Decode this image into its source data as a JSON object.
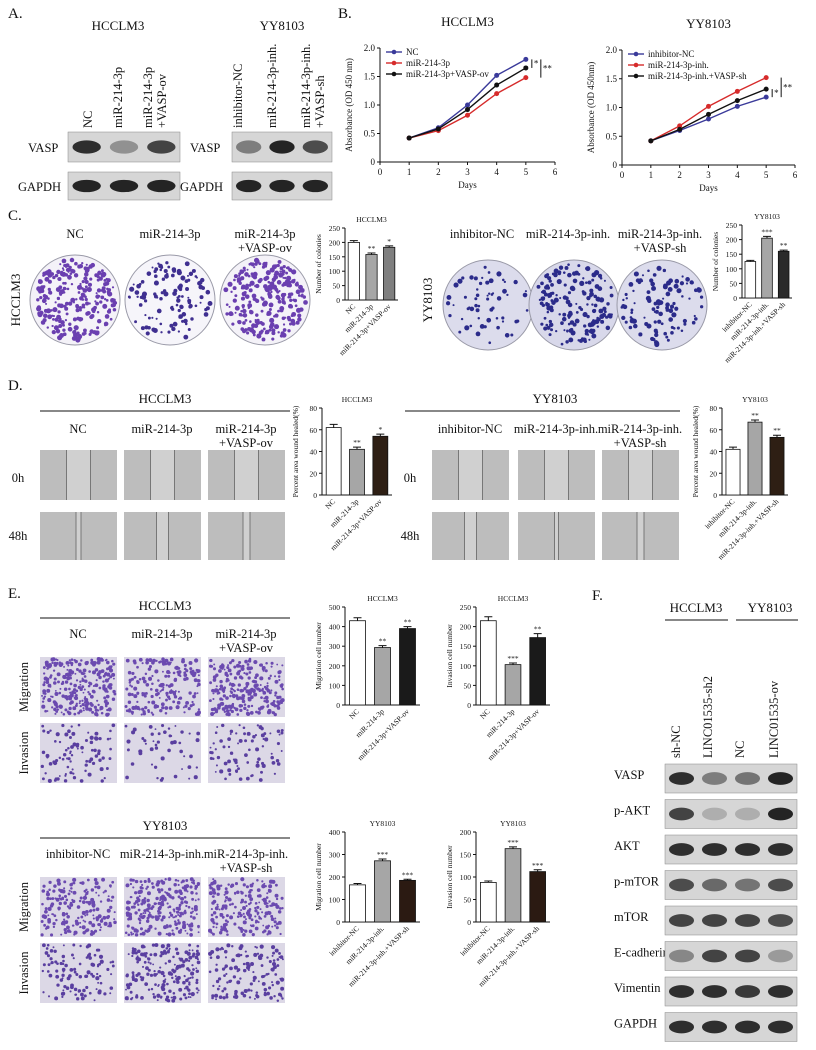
{
  "panel_a": {
    "label": "A.",
    "cell_lines": [
      "HCCLM3",
      "YY8103"
    ],
    "lanes_hcclm3": [
      "NC",
      "miR-214-3p",
      [
        "miR-214-3p",
        "+VASP-ov"
      ]
    ],
    "lanes_yy8103": [
      "inhibitor-NC",
      "miR-214-3p-inh.",
      [
        "miR-214-3p-inh.",
        "+VASP-sh"
      ]
    ],
    "rows": [
      "VASP",
      "GAPDH"
    ]
  },
  "panel_b": {
    "label": "B."
  },
  "panel_c": {
    "label": "C.",
    "cell_lines": [
      "HCCLM3",
      "YY8103"
    ],
    "groups_hcclm3": [
      "NC",
      "miR-214-3p",
      [
        "miR-214-3p",
        "+VASP-ov"
      ]
    ],
    "groups_yy8103": [
      "inhibitor-NC",
      "miR-214-3p-inh.",
      [
        "miR-214-3p-inh.",
        "+VASP-sh"
      ]
    ]
  },
  "panel_d": {
    "label": "D.",
    "cell_lines": [
      "HCCLM3",
      "YY8103"
    ],
    "groups_hcclm3": [
      "NC",
      "miR-214-3p",
      [
        "miR-214-3p",
        "+VASP-ov"
      ]
    ],
    "groups_yy8103": [
      "inhibitor-NC",
      "miR-214-3p-inh.",
      [
        "miR-214-3p-inh.",
        "+VASP-sh"
      ]
    ],
    "times": [
      "0h",
      "48h"
    ]
  },
  "panel_e": {
    "label": "E.",
    "cell_lines": [
      "HCCLM3",
      "YY8103"
    ],
    "groups_hcclm3": [
      "NC",
      "miR-214-3p",
      [
        "miR-214-3p",
        "+VASP-ov"
      ]
    ],
    "groups_yy8103": [
      "inhibitor-NC",
      "miR-214-3p-inh.",
      [
        "miR-214-3p-inh.",
        "+VASP-sh"
      ]
    ],
    "assays": [
      "Migration",
      "Invasion"
    ]
  },
  "panel_f": {
    "label": "F.",
    "cell_lines": [
      "HCCLM3",
      "YY8103"
    ],
    "lanes": [
      "sh-NC",
      "LINC01535-sh2",
      "NC",
      "LINC01535-ov"
    ],
    "rows": [
      "VASP",
      "p-AKT",
      "AKT",
      "p-mTOR",
      "mTOR",
      "E-cadherin",
      "Vimentin",
      "GAPDH"
    ]
  },
  "chart_data": [
    {
      "type": "line",
      "title": "HCCLM3",
      "xlabel": "Days",
      "ylabel": "Absorbance (OD 450 nm)",
      "x": [
        1,
        2,
        3,
        4,
        5
      ],
      "xlim": [
        0,
        6
      ],
      "xticks": [
        0,
        1,
        2,
        3,
        4,
        5,
        6
      ],
      "ylim": [
        0,
        2
      ],
      "yticks": [
        0,
        0.5,
        {
          "value": 1,
          "label": "1.0"
        },
        1.5,
        {
          "value": 2,
          "label": "2.0"
        }
      ],
      "series": [
        {
          "name": "NC",
          "color": "#3a3a9a",
          "values": [
            0.42,
            0.6,
            1.0,
            1.52,
            1.8
          ]
        },
        {
          "name": "miR-214-3p",
          "color": "#d62b2b",
          "values": [
            0.42,
            0.55,
            0.82,
            1.2,
            1.48
          ]
        },
        {
          "name": "miR-214-3p+VASP-ov",
          "color": "#111111",
          "values": [
            0.42,
            0.58,
            0.92,
            1.35,
            1.65
          ]
        }
      ],
      "annotations": [
        "*",
        "**"
      ]
    },
    {
      "type": "line",
      "title": "YY8103",
      "xlabel": "Days",
      "ylabel": "Absorbance (OD 450nm)",
      "x": [
        1,
        2,
        3,
        4,
        5
      ],
      "xlim": [
        0,
        6
      ],
      "xticks": [
        0,
        1,
        2,
        3,
        4,
        5,
        6
      ],
      "ylim": [
        0,
        2
      ],
      "yticks": [
        0,
        0.5,
        {
          "value": 1,
          "label": "1.0"
        },
        1.5,
        {
          "value": 2,
          "label": "2.0"
        }
      ],
      "series": [
        {
          "name": "inhibitor-NC",
          "color": "#3a3a9a",
          "values": [
            0.42,
            0.6,
            0.8,
            1.02,
            1.18
          ]
        },
        {
          "name": "miR-214-3p-inh.",
          "color": "#d62b2b",
          "values": [
            0.42,
            0.68,
            1.02,
            1.28,
            1.52
          ]
        },
        {
          "name": "miR-214-3p-inh.+VASP-sh",
          "color": "#111111",
          "values": [
            0.42,
            0.62,
            0.88,
            1.12,
            1.32
          ]
        }
      ],
      "annotations": [
        "*",
        "**"
      ]
    },
    {
      "type": "bar",
      "title": "HCCLM3",
      "ylabel": "Number of colonies",
      "categories": [
        "NC",
        "miR-214-3p",
        "miR-214-3p+VASP-ov"
      ],
      "values": [
        200,
        158,
        183
      ],
      "errors": [
        6,
        5,
        5
      ],
      "significance": [
        null,
        "**",
        "*"
      ],
      "colors": [
        "#ffffff",
        "#a6a6a6",
        "#7f7f7f"
      ],
      "ylim": [
        0,
        250
      ],
      "yticks": [
        0,
        50,
        100,
        150,
        200,
        250
      ]
    },
    {
      "type": "bar",
      "title": "YY8103",
      "ylabel": "Number of colonies",
      "categories": [
        "inhibitor-NC",
        "miR-214-3p-inh.",
        "miR-214-3p-inh.+VASP-sh"
      ],
      "values": [
        125,
        205,
        160
      ],
      "errors": [
        4,
        6,
        4
      ],
      "significance": [
        null,
        "***",
        "**"
      ],
      "colors": [
        "#ffffff",
        "#a6a6a6",
        "#2a2a2a"
      ],
      "ylim": [
        0,
        250
      ],
      "yticks": [
        0,
        50,
        100,
        150,
        200,
        250
      ]
    },
    {
      "type": "bar",
      "title": "HCCLM3",
      "ylabel": "Percent area wound healed(%)",
      "categories": [
        "NC",
        "miR-214-3p",
        "miR-214-3p+VASP-ov"
      ],
      "values": [
        62,
        42,
        54
      ],
      "errors": [
        3,
        2,
        2
      ],
      "significance": [
        null,
        "**",
        "*"
      ],
      "colors": [
        "#ffffff",
        "#a6a6a6",
        "#2e1f14"
      ],
      "ylim": [
        0,
        80
      ],
      "yticks": [
        0,
        20,
        40,
        60,
        80
      ]
    },
    {
      "type": "bar",
      "title": "YY8103",
      "ylabel": "Percent area wound healed(%)",
      "categories": [
        "inhibitor-NC",
        "miR-214-3p-inh.",
        "miR-214-3p-inh.+VASP-sh"
      ],
      "values": [
        42,
        67,
        53
      ],
      "errors": [
        2,
        2,
        2
      ],
      "significance": [
        null,
        "**",
        "**"
      ],
      "colors": [
        "#ffffff",
        "#a6a6a6",
        "#2e1f14"
      ],
      "ylim": [
        0,
        80
      ],
      "yticks": [
        0,
        20,
        40,
        60,
        80
      ]
    },
    {
      "type": "bar",
      "title": "HCCLM3",
      "ylabel": "Migration cell number",
      "categories": [
        "NC",
        "miR-214-3p",
        "miR-214-3p+VASP-ov"
      ],
      "values": [
        430,
        293,
        390
      ],
      "errors": [
        15,
        10,
        10
      ],
      "significance": [
        null,
        "**",
        "**"
      ],
      "colors": [
        "#ffffff",
        "#a6a6a6",
        "#1a1a1a"
      ],
      "ylim": [
        0,
        500
      ],
      "yticks": [
        0,
        100,
        200,
        300,
        400,
        500
      ]
    },
    {
      "type": "bar",
      "title": "HCCLM3",
      "ylabel": "Invasion cell number",
      "categories": [
        "NC",
        "miR-214-3p",
        "miR-214-3p+VASP-ov"
      ],
      "values": [
        215,
        103,
        172
      ],
      "errors": [
        10,
        4,
        10
      ],
      "significance": [
        null,
        "***",
        "**"
      ],
      "colors": [
        "#ffffff",
        "#a6a6a6",
        "#1a1a1a"
      ],
      "ylim": [
        0,
        250
      ],
      "yticks": [
        0,
        50,
        100,
        150,
        200,
        250
      ]
    },
    {
      "type": "bar",
      "title": "YY8103",
      "ylabel": "Migration cell number",
      "categories": [
        "inhibitor-NC",
        "miR-214-3p-inh.",
        "miR-214-3p-inh.+VASP-sh"
      ],
      "values": [
        165,
        272,
        185
      ],
      "errors": [
        6,
        8,
        5
      ],
      "significance": [
        null,
        "***",
        "***"
      ],
      "colors": [
        "#ffffff",
        "#a6a6a6",
        "#2b1a12"
      ],
      "ylim": [
        0,
        400
      ],
      "yticks": [
        0,
        100,
        200,
        300,
        400
      ]
    },
    {
      "type": "bar",
      "title": "YY8103",
      "ylabel": "Invasion cell number",
      "categories": [
        "inhibitor-NC",
        "miR-214-3p-inh.",
        "miR-214-3p-inh.+VASP-sh"
      ],
      "values": [
        88,
        163,
        112
      ],
      "errors": [
        3,
        4,
        4
      ],
      "significance": [
        null,
        "***",
        "***"
      ],
      "colors": [
        "#ffffff",
        "#a6a6a6",
        "#2b1a12"
      ],
      "ylim": [
        0,
        200
      ],
      "yticks": [
        0,
        50,
        100,
        150,
        200
      ]
    }
  ]
}
